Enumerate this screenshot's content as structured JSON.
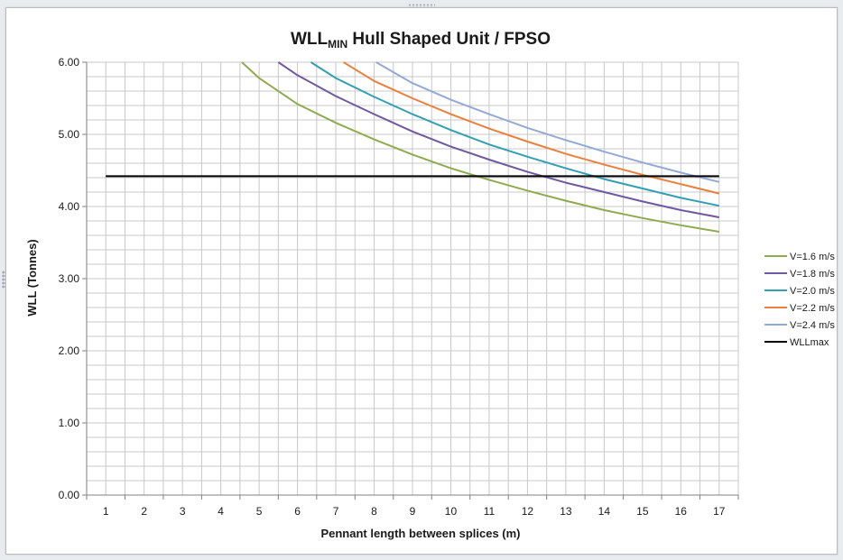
{
  "chart_data": {
    "type": "line",
    "title_main": "WLL",
    "title_sub": "MIN",
    "title_rest": " Hull Shaped Unit / FPSO",
    "xlabel": "Pennant length between splices (m)",
    "ylabel": "WLL (Tonnes)",
    "xlim": [
      0.5,
      17.5
    ],
    "ylim": [
      0,
      6
    ],
    "x_ticks": [
      1,
      2,
      3,
      4,
      5,
      6,
      7,
      8,
      9,
      10,
      11,
      12,
      13,
      14,
      15,
      16,
      17
    ],
    "x_tick_labels": [
      "1",
      "2",
      "3",
      "4",
      "5",
      "6",
      "7",
      "8",
      "9",
      "10",
      "11",
      "12",
      "13",
      "14",
      "15",
      "16",
      "17"
    ],
    "y_ticks": [
      0,
      1,
      2,
      3,
      4,
      5,
      6
    ],
    "y_tick_labels": [
      "0.00",
      "1.00",
      "2.00",
      "3.00",
      "4.00",
      "5.00",
      "6.00"
    ],
    "grid": true,
    "legend_position": "right",
    "series": [
      {
        "name": "V=1.6 m/s",
        "color": "#8eac4f",
        "x": [
          4.55,
          5,
          6,
          7,
          8,
          9,
          10,
          11,
          12,
          13,
          14,
          15,
          16,
          17
        ],
        "y": [
          6.0,
          5.78,
          5.42,
          5.16,
          4.93,
          4.72,
          4.53,
          4.37,
          4.22,
          4.08,
          3.95,
          3.84,
          3.74,
          3.65
        ]
      },
      {
        "name": "V=1.8 m/s",
        "color": "#7059a0",
        "x": [
          5.5,
          6,
          7,
          8,
          9,
          10,
          11,
          12,
          13,
          14,
          15,
          16,
          17
        ],
        "y": [
          6.0,
          5.82,
          5.53,
          5.28,
          5.04,
          4.83,
          4.65,
          4.48,
          4.33,
          4.2,
          4.07,
          3.95,
          3.85
        ]
      },
      {
        "name": "V=2.0 m/s",
        "color": "#31a0b4",
        "x": [
          6.35,
          7,
          8,
          9,
          10,
          11,
          12,
          13,
          14,
          15,
          16,
          17
        ],
        "y": [
          6.0,
          5.78,
          5.52,
          5.28,
          5.06,
          4.86,
          4.69,
          4.53,
          4.38,
          4.25,
          4.12,
          4.01
        ]
      },
      {
        "name": "V=2.2 m/s",
        "color": "#ec7f3a",
        "x": [
          7.2,
          8,
          9,
          10,
          11,
          12,
          13,
          14,
          15,
          16,
          17
        ],
        "y": [
          6.0,
          5.74,
          5.5,
          5.28,
          5.08,
          4.9,
          4.73,
          4.58,
          4.44,
          4.31,
          4.18
        ]
      },
      {
        "name": "V=2.4 m/s",
        "color": "#93a9d6",
        "x": [
          8.05,
          9,
          10,
          11,
          12,
          13,
          14,
          15,
          16,
          17
        ],
        "y": [
          6.0,
          5.71,
          5.48,
          5.28,
          5.09,
          4.92,
          4.76,
          4.61,
          4.47,
          4.34
        ]
      },
      {
        "name": "WLLmax",
        "color": "#000000",
        "x": [
          1,
          17
        ],
        "y": [
          4.42,
          4.42
        ]
      }
    ]
  }
}
